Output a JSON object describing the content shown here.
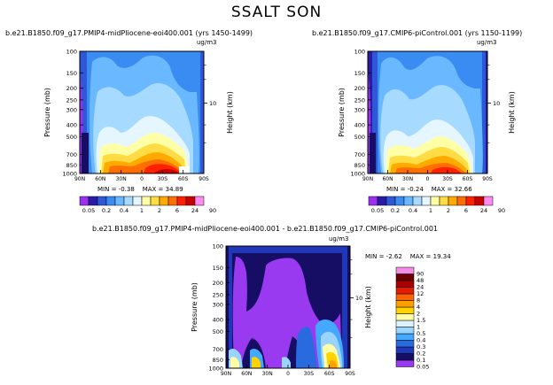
{
  "figure": {
    "title": "SSALT SON",
    "units": "ug/m3",
    "pressure_label": "Pressure  (mb)",
    "height_label": "Height  (km)"
  },
  "colorbar": {
    "labels_h": [
      "0.05",
      "0.2",
      "0.4",
      "1",
      "2",
      "6",
      "24",
      "90"
    ],
    "labels_v": [
      "90",
      "48",
      "24",
      "12",
      "8",
      "4",
      "2",
      "1.5",
      "1",
      "0.5",
      "0.4",
      "0.3",
      "0.2",
      "0.1",
      "0.05"
    ],
    "colors_main": [
      "#9c30f0",
      "#2a1aa8",
      "#2f58d8",
      "#3a8cf2",
      "#6ab8ff",
      "#a6daff",
      "#e6f6ff",
      "#ffffa6",
      "#ffdc44",
      "#ffaa00",
      "#ff6e00",
      "#ff2000",
      "#c80000",
      "#ff8cf2"
    ],
    "colors_diff": [
      "#9a3af0",
      "#150e64",
      "#2038b8",
      "#2a6ae0",
      "#44a8ff",
      "#98d4ff",
      "#dcf2ff",
      "#ffffa6",
      "#ffd200",
      "#ffa000",
      "#ff6400",
      "#e61c00",
      "#a80000",
      "#6a0000",
      "#f58ce6"
    ]
  },
  "chart_data": [
    {
      "type": "heatmap",
      "title": "b.e21.B1850.f09_g17.PMIP4-midPliocene-eoi400.001  (yrs 1450-1499)",
      "units": "ug/m3",
      "ylabel": "Pressure  (mb)",
      "ylabel_right": "Height  (km)",
      "x_ticks": [
        "90N",
        "60N",
        "30N",
        "0",
        "30S",
        "60S",
        "90S"
      ],
      "y_ticks": [
        100,
        150,
        200,
        250,
        300,
        400,
        500,
        700,
        850,
        1000
      ],
      "right_ticks": [
        "10"
      ],
      "min_label": "MIN =",
      "min": "-0.38",
      "max_label": "MAX =",
      "max": "34.89"
    },
    {
      "type": "heatmap",
      "title": "b.e21.B1850.f09_g17.CMIP6-piControl.001  (yrs 1150-1199)",
      "units": "ug/m3",
      "ylabel": "Pressure  (mb)",
      "ylabel_right": "Height  (km)",
      "x_ticks": [
        "90N",
        "60N",
        "30N",
        "0",
        "30S",
        "60S",
        "90S"
      ],
      "y_ticks": [
        100,
        150,
        200,
        250,
        300,
        400,
        500,
        700,
        850,
        1000
      ],
      "right_ticks": [
        "10"
      ],
      "min_label": "MIN =",
      "min": "-0.24",
      "max_label": "MAX =",
      "max": "32.66"
    },
    {
      "type": "heatmap",
      "title": "b.e21.B1850.f09_g17.PMIP4-midPliocene-eoi400.001  -  b.e21.B1850.f09_g17.CMIP6-piControl.001",
      "units": "ug/m3",
      "ylabel": "Pressure  (mb)",
      "ylabel_right": "Height  (km)",
      "x_ticks": [
        "90N",
        "60N",
        "30N",
        "0",
        "30S",
        "60S",
        "90S"
      ],
      "y_ticks": [
        100,
        150,
        200,
        250,
        300,
        400,
        500,
        700,
        850,
        1000
      ],
      "right_ticks": [
        "10"
      ],
      "min_label": "MIN =",
      "min": "-2.62",
      "max_label": "MAX =",
      "max": "19.34"
    }
  ]
}
